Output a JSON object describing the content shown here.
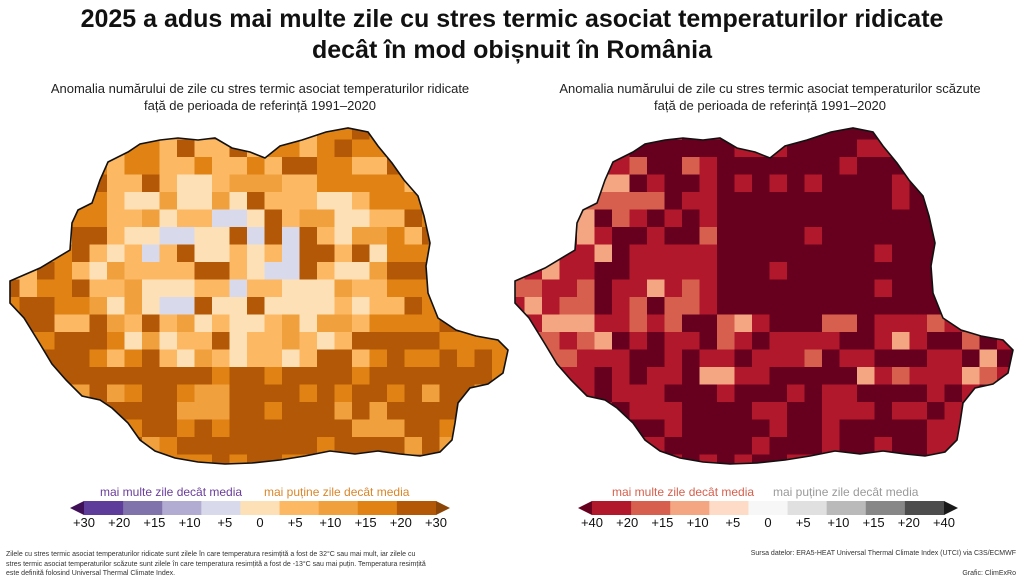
{
  "title_line1": "2025 a adus mai multe zile cu stres termic asociat temperaturilor ridicate",
  "title_line2": "decât în mod obișnuit în România",
  "left_panel": {
    "subtitle_line1": "Anomalia numărului de zile cu stres termic asociat temperaturilor ridicate",
    "subtitle_line2": "față de perioada de referință 1991–2020",
    "legend_more": "mai multe zile decât media",
    "legend_fewer": "mai puține zile decât media",
    "legend_more_color": "#6a3d9a",
    "legend_fewer_color": "#d9862a",
    "tick_labels": [
      "+30",
      "+20",
      "+15",
      "+10",
      "+5",
      "0",
      "+5",
      "+10",
      "+15",
      "+20",
      "+30"
    ],
    "palette": [
      "#3f0f57",
      "#5e3c99",
      "#8073ac",
      "#b2abd2",
      "#d8daeb",
      "#fee0b6",
      "#fdb863",
      "#f0a03c",
      "#e08214",
      "#b35806",
      "#8a4507"
    ]
  },
  "right_panel": {
    "subtitle_line1": "Anomalia numărului de zile cu stres termic asociat temperaturilor scăzute",
    "subtitle_line2": "față de perioada de referință 1991–2020",
    "legend_more": "mai multe zile decât media",
    "legend_fewer": "mai puține zile decât media",
    "legend_more_color": "#d6604d",
    "legend_fewer_color": "#9a9a9a",
    "tick_labels": [
      "+40",
      "+20",
      "+15",
      "+10",
      "+5",
      "0",
      "+5",
      "+10",
      "+15",
      "+20",
      "+40"
    ],
    "palette": [
      "#67001f",
      "#b2182b",
      "#d6604d",
      "#f4a582",
      "#fddbc7",
      "#f7f7f7",
      "#e0e0e0",
      "#bababa",
      "#878787",
      "#4d4d4d",
      "#1a1a1a"
    ]
  },
  "footnote": "Zilele cu stres termic asociat temperaturilor ridicate sunt zilele în care temperatura resimțită a fost de 32°C sau mai mult, iar zilele cu stres termic asociat temperaturilor scăzute sunt zilele în care temperatura resimțită a fost de -13°C sau mai puțin. Temperatura resimțită este definită folosind Universal Thermal Climate Index.",
  "source": "Sursa datelor: ERA5-HEAT Universal Thermal Climate Index (UTCI) via C3S/ECMWF",
  "credit": "Grafic: ClimExRo"
}
